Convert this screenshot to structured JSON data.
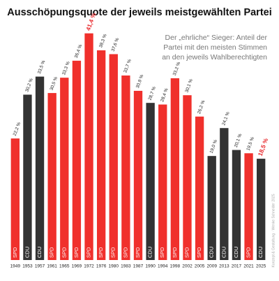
{
  "chart_data": {
    "type": "bar",
    "title": "Ausschöpungsquote der jeweils meistgewählten Partei",
    "subtitle": [
      "Der „ehrliche“ Sieger: Anteil der",
      "Partei mit den meisten Stimmen",
      "an den jeweils Wahlberechtigten"
    ],
    "credit": "Konzept & Gestaltung · Wenke Schneider 2025",
    "categories": [
      "1949",
      "1953",
      "1957",
      "1961",
      "1965",
      "1969",
      "1972",
      "1976",
      "1980",
      "1983",
      "1987",
      "1990",
      "1994",
      "1998",
      "2002",
      "2005",
      "2009",
      "2013",
      "2017",
      "2021",
      "2025"
    ],
    "parties": [
      "SPD",
      "CDU",
      "CDU",
      "SPD",
      "SPD",
      "SPD",
      "SPD",
      "SPD",
      "SPD",
      "SPD",
      "SPD",
      "CDU",
      "SPD",
      "SPD",
      "SPD",
      "SPD",
      "CDU",
      "CDU",
      "CDU",
      "SPD",
      "CDU"
    ],
    "party_colors": {
      "SPD": "#f0302c",
      "CDU": "#333333"
    },
    "values": [
      22.2,
      30.2,
      33.5,
      30.5,
      33.3,
      36.4,
      41.4,
      38.3,
      37.6,
      33.7,
      30.9,
      28.7,
      28.4,
      33.2,
      30.1,
      26.2,
      19.0,
      24.1,
      20.1,
      19.5,
      18.5
    ],
    "value_labels": [
      "22,2 %",
      "30,2 %",
      "33,5 %",
      "30,5 %",
      "33,3 %",
      "36,4 %",
      "41,4 %",
      "38,3 %",
      "37,6 %",
      "33,7 %",
      "30,9 %",
      "28,7 %",
      "28,4 %",
      "33,2 %",
      "30,1 %",
      "26,2 %",
      "19,0 %",
      "24,1 %",
      "20,1 %",
      "19,5 %",
      "18,5 %"
    ],
    "value_label_colors": [
      "#222",
      "#222",
      "#222",
      "#222",
      "#222",
      "#222",
      "#e8282b",
      "#222",
      "#222",
      "#222",
      "#222",
      "#222",
      "#222",
      "#222",
      "#222",
      "#222",
      "#222",
      "#222",
      "#222",
      "#222",
      "#e8282b"
    ],
    "ylim": [
      0,
      42
    ],
    "grid": false
  }
}
